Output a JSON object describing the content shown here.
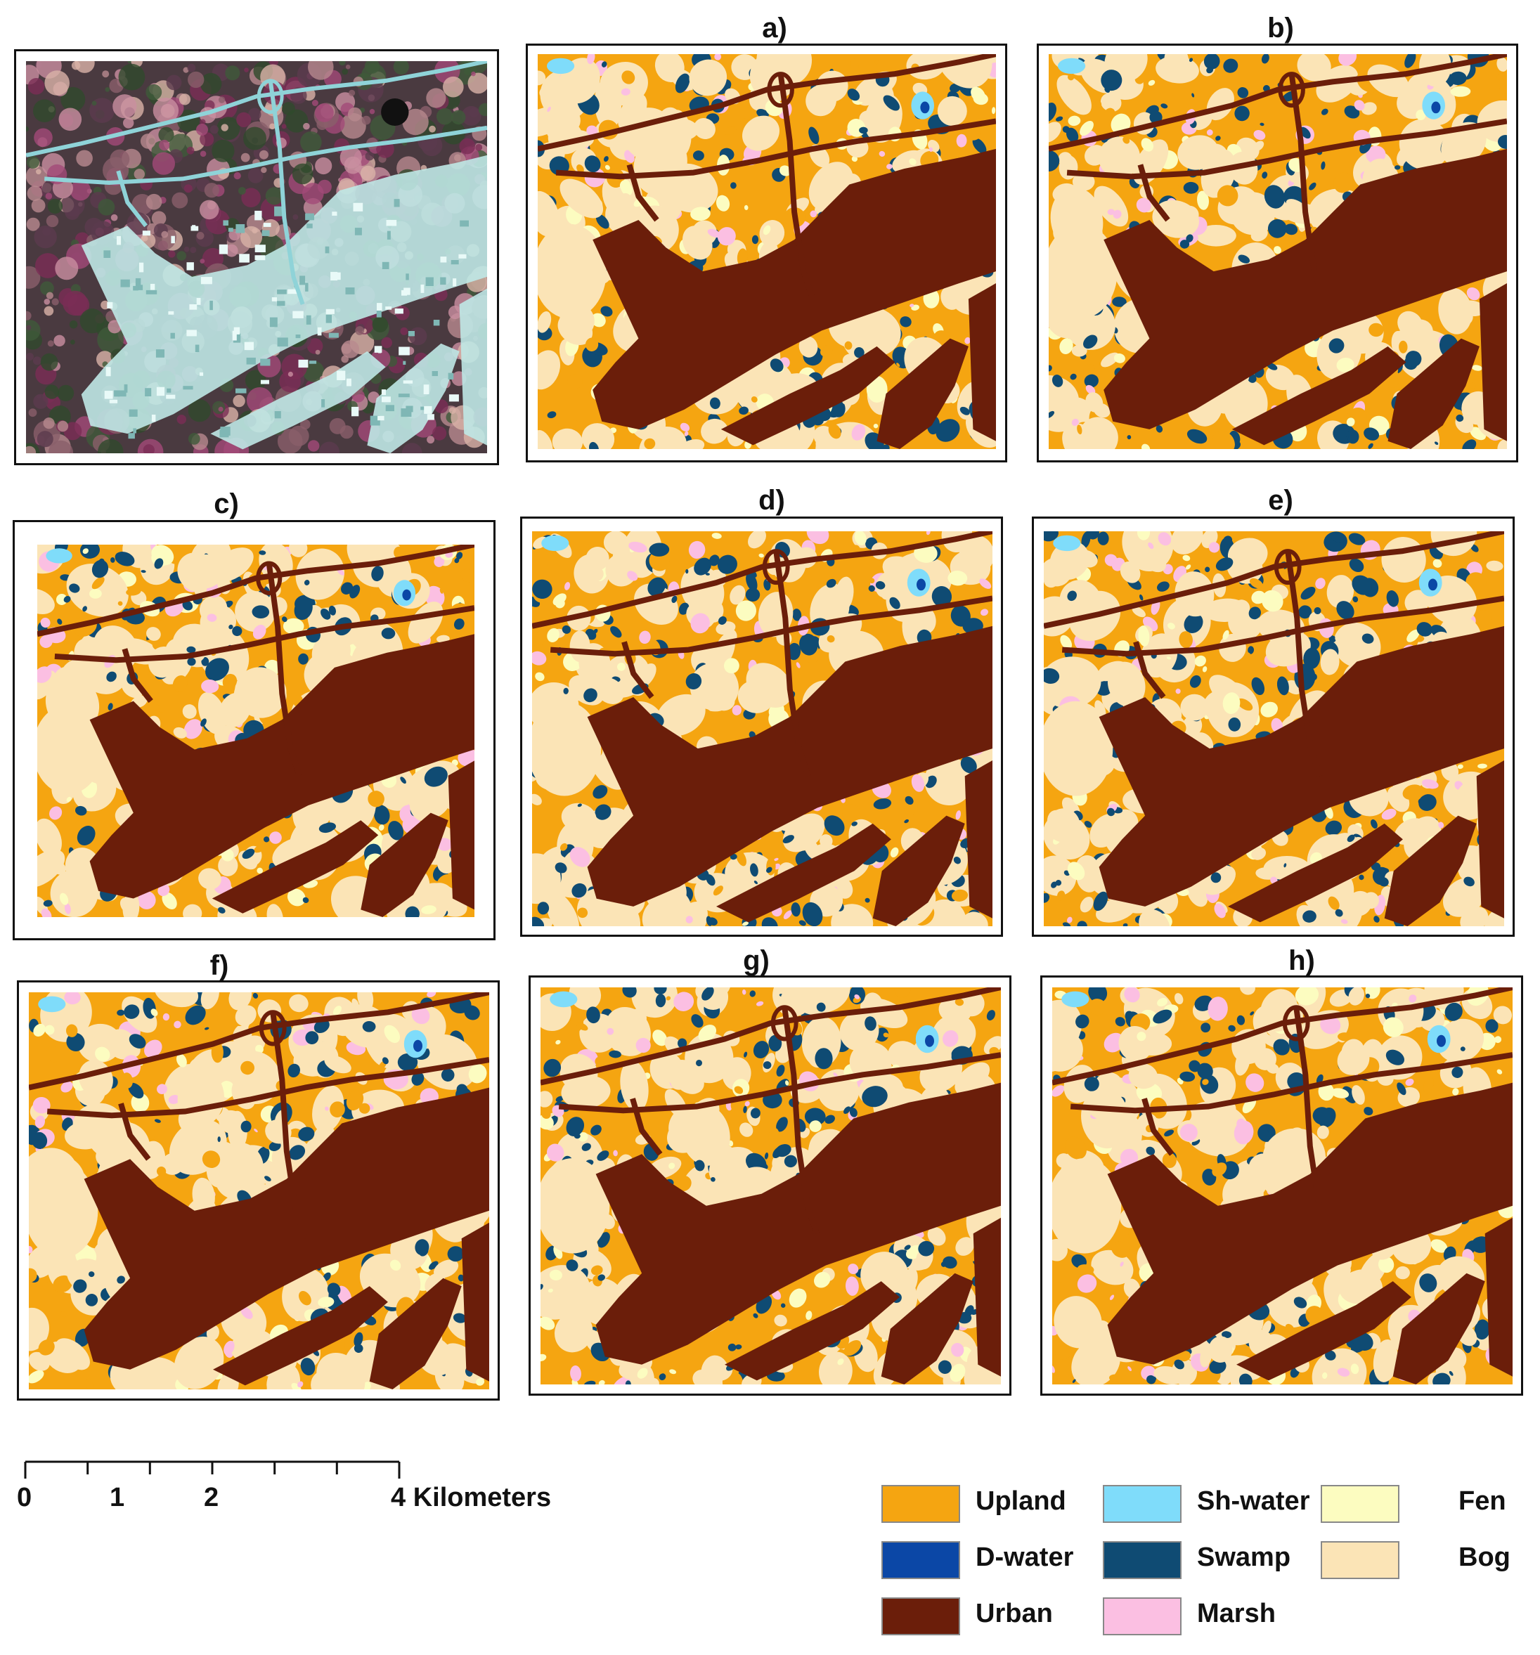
{
  "panels": [
    {
      "id": "satellite",
      "label": "",
      "kind": "satellite"
    },
    {
      "id": "a",
      "label": "a)",
      "kind": "classified"
    },
    {
      "id": "b",
      "label": "b)",
      "kind": "classified"
    },
    {
      "id": "c",
      "label": "c)",
      "kind": "classified"
    },
    {
      "id": "d",
      "label": "d)",
      "kind": "classified"
    },
    {
      "id": "e",
      "label": "e)",
      "kind": "classified"
    },
    {
      "id": "f",
      "label": "f)",
      "kind": "classified"
    },
    {
      "id": "g",
      "label": "g)",
      "kind": "classified"
    },
    {
      "id": "h",
      "label": "h)",
      "kind": "classified"
    }
  ],
  "scale_bar": {
    "ticks": [
      "0",
      "1",
      "2",
      "4 Kilometers"
    ],
    "max_value": 4,
    "tick_values": [
      0,
      1,
      2,
      4
    ],
    "minor_divisions": 6
  },
  "legend": {
    "items": [
      {
        "label": "Upland",
        "color": "#f5a511"
      },
      {
        "label": "Sh-water",
        "color": "#7fdcfa"
      },
      {
        "label": "Fen",
        "color": "#fcfcc0"
      },
      {
        "label": "D-water",
        "color": "#0b47a6"
      },
      {
        "label": "Swamp",
        "color": "#0f4b73"
      },
      {
        "label": "Bog",
        "color": "#fbe4b6"
      },
      {
        "label": "Urban",
        "color": "#6b1e0a"
      },
      {
        "label": "Marsh",
        "color": "#fbbfe2"
      }
    ]
  }
}
